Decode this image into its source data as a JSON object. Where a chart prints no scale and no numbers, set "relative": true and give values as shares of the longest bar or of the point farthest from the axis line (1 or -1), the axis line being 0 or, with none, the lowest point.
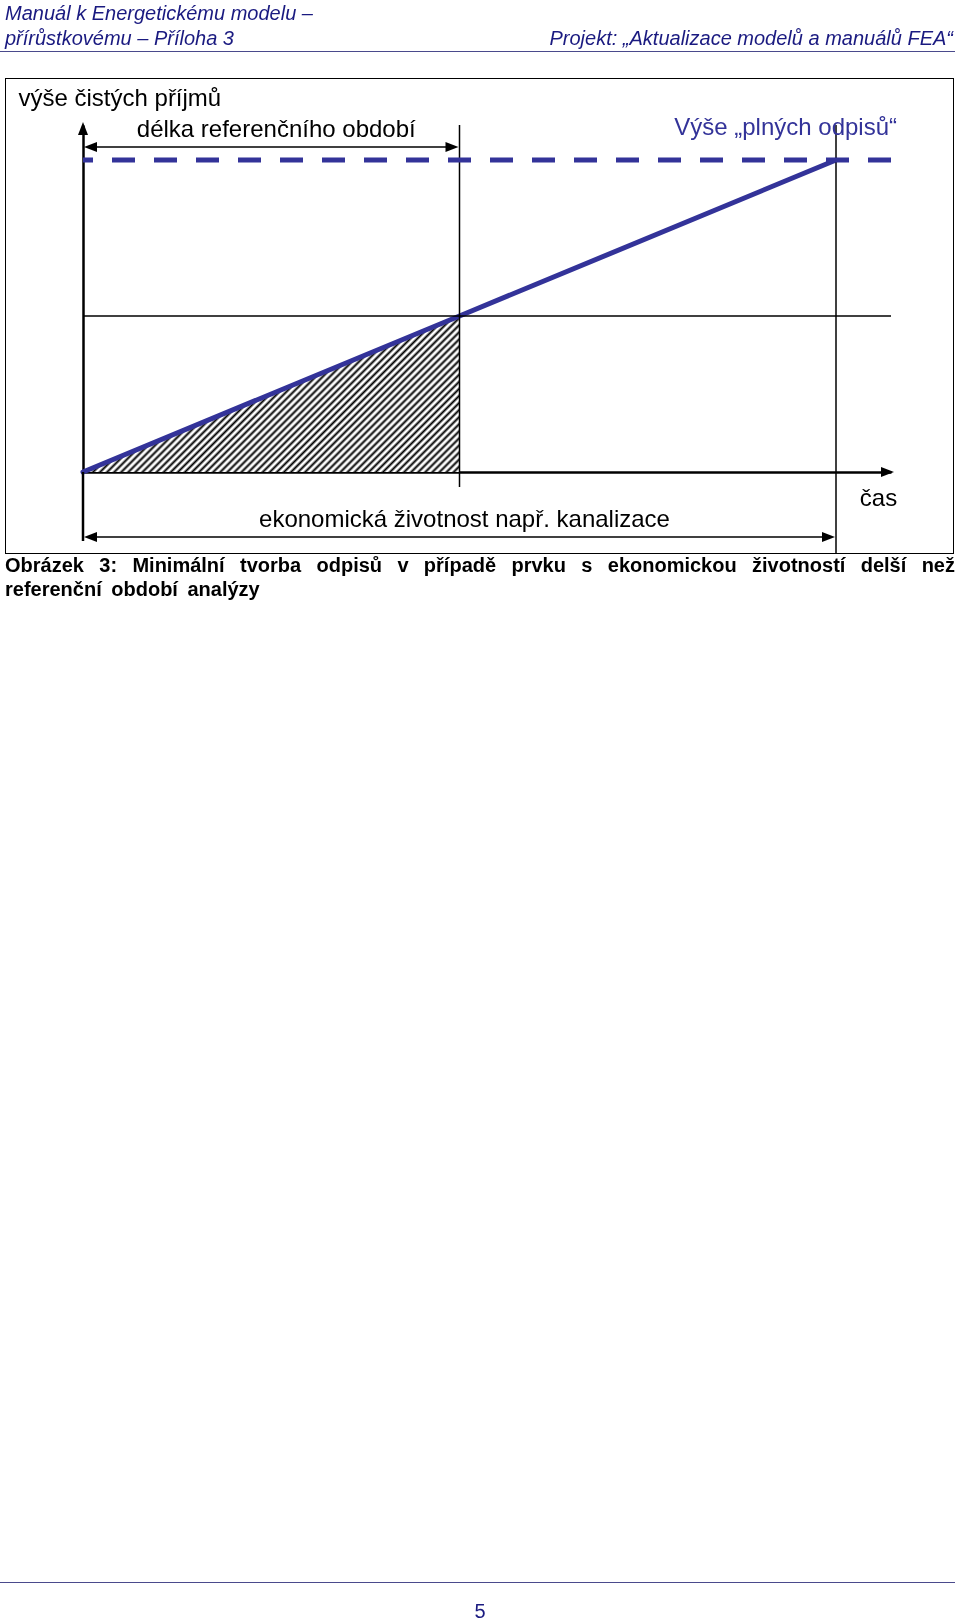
{
  "chart_data": {
    "type": "line",
    "relative": true,
    "xlabel": "čas",
    "ylabel": "výše čistých příjmů",
    "categories": [
      null,
      null,
      null
    ],
    "series": [
      {
        "type": "area",
        "color": "#000000",
        "values": [
          0,
          0.5,
          null
        ]
      },
      {
        "type": "line",
        "color": "#333399",
        "values": [
          0,
          0.5,
          1
        ]
      }
    ],
    "ref_lines": [
      {
        "axis": "y",
        "value": 0.5,
        "color": "#000000",
        "line_style": "solid"
      },
      {
        "axis": "y",
        "value": 1,
        "label": "Výše „plných odpisů“",
        "color": "#333399",
        "line_style": "dashed"
      }
    ],
    "annotations": [
      "Manuál k Energetickému modelu – přírůstkovému – Příloha 3",
      "Projekt: „Aktualizace modelů a manuálů FEA“",
      "délka referenčního období",
      "ekonomická životnost např. kanalizace",
      "Obrázek 3: Minimální tvorba odpisů v případě prvku s ekonomickou životností delší než referenční období analýzy",
      "5"
    ]
  }
}
